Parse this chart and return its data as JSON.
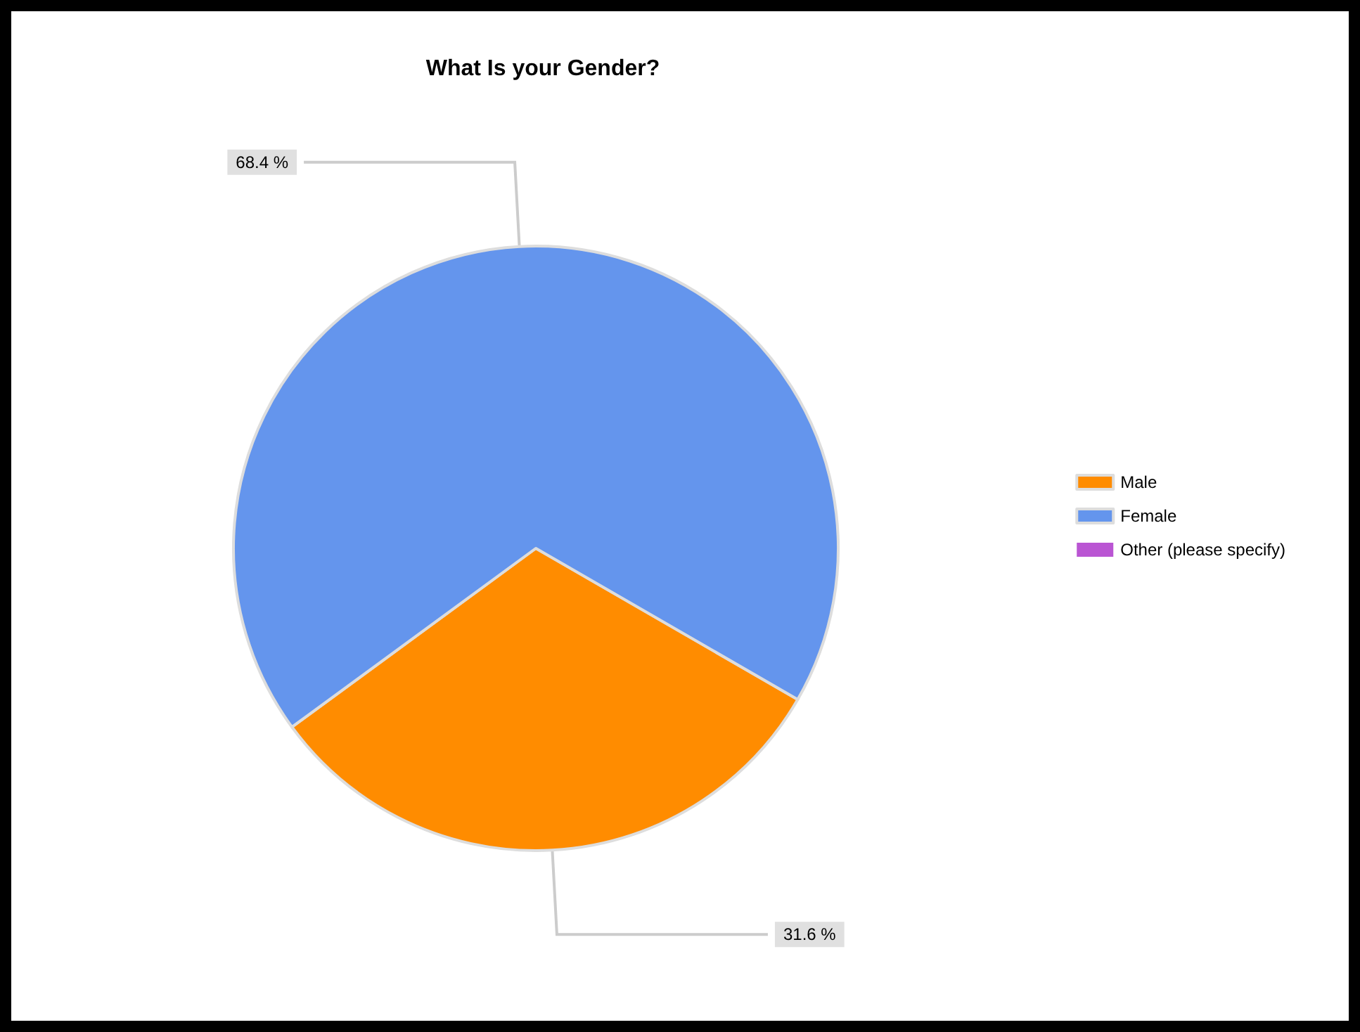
{
  "chart_data": {
    "type": "pie",
    "title": "What Is your Gender?",
    "categories": [
      "Male",
      "Female",
      "Other (please specify)"
    ],
    "values": [
      31.6,
      68.4,
      0
    ],
    "colors": [
      "#ff8c00",
      "#6495ed",
      "#ba55d3"
    ],
    "value_labels": [
      "31.6 %",
      "68.4 %",
      null
    ],
    "legend": "right"
  }
}
